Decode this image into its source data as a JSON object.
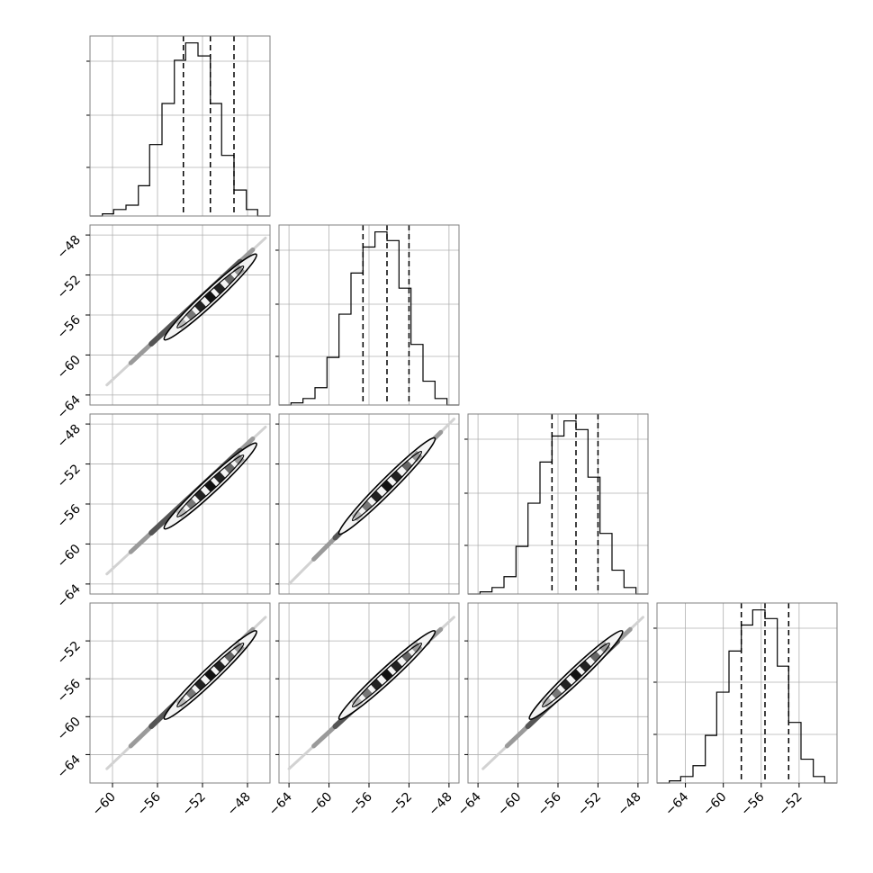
{
  "figure": {
    "background": "#ffffff",
    "grid_color": "#b0b0b0",
    "frame_color": "#808080",
    "line_color": "#000000"
  },
  "chart_data": {
    "type": "corner",
    "title": "",
    "parameters": 4,
    "grid": true,
    "parameter_ranges": [
      [
        -62,
        -46
      ],
      [
        -65,
        -47
      ],
      [
        -65,
        -47
      ],
      [
        -67,
        -48
      ]
    ],
    "x_tick_labels": [
      [
        "−60",
        "−56",
        "−52",
        "−48"
      ],
      [
        "−64",
        "−60",
        "−56",
        "−52",
        "−48"
      ],
      [
        "−64",
        "−60",
        "−56",
        "−52",
        "−48"
      ],
      [
        "−64",
        "−60",
        "−56",
        "−52"
      ]
    ],
    "x_tick_values": [
      [
        -60,
        -56,
        -52,
        -48
      ],
      [
        -64,
        -60,
        -56,
        -52,
        -48
      ],
      [
        -64,
        -60,
        -56,
        -52,
        -48
      ],
      [
        -64,
        -60,
        -56,
        -52
      ]
    ],
    "y_tick_labels": [
      [],
      [
        "−48",
        "−52",
        "−56",
        "−60",
        "−64"
      ],
      [
        "−48",
        "−52",
        "−56",
        "−60",
        "−64"
      ],
      [
        "−52",
        "−56",
        "−60",
        "−64"
      ]
    ],
    "y_tick_values": [
      [],
      [
        -48,
        -52,
        -56,
        -60,
        -64
      ],
      [
        -48,
        -52,
        -56,
        -60,
        -64
      ],
      [
        -52,
        -56,
        -60,
        -64
      ]
    ],
    "histograms": [
      {
        "param": 0,
        "bin_edges": [
          -62,
          -60.9,
          -59.9,
          -58.8,
          -57.7,
          -56.7,
          -55.6,
          -54.5,
          -53.5,
          -52.4,
          -51.3,
          -50.3,
          -49.2,
          -48.1,
          -47.1,
          -46
        ],
        "counts": [
          0,
          1,
          3,
          5,
          14,
          33,
          52,
          72,
          80,
          74,
          52,
          28,
          12,
          3,
          0
        ],
        "quantiles": [
          -53.7,
          -51.3,
          -49.2
        ]
      },
      {
        "param": 1,
        "bin_edges": [
          -65,
          -63.8,
          -62.6,
          -61.4,
          -60.2,
          -59,
          -57.8,
          -56.6,
          -55.4,
          -54.2,
          -53,
          -51.8,
          -50.6,
          -49.4,
          -48.2,
          -47
        ],
        "counts": [
          0,
          1,
          3,
          8,
          22,
          42,
          61,
          73,
          80,
          76,
          54,
          28,
          11,
          3,
          0
        ],
        "quantiles": [
          -56.6,
          -54.2,
          -52
        ]
      },
      {
        "param": 2,
        "bin_edges": [
          -65,
          -63.8,
          -62.6,
          -61.4,
          -60.2,
          -59,
          -57.8,
          -56.6,
          -55.4,
          -54.2,
          -53,
          -51.8,
          -50.6,
          -49.4,
          -48.2,
          -47
        ],
        "counts": [
          0,
          1,
          3,
          8,
          22,
          42,
          61,
          73,
          80,
          76,
          54,
          28,
          11,
          3,
          0
        ],
        "quantiles": [
          -56.6,
          -54.2,
          -52
        ]
      },
      {
        "param": 3,
        "bin_edges": [
          -67,
          -65.7,
          -64.5,
          -63.2,
          -61.9,
          -60.7,
          -59.4,
          -58.1,
          -56.9,
          -55.6,
          -54.3,
          -53.1,
          -51.8,
          -50.5,
          -49.3,
          -48
        ],
        "counts": [
          0,
          1,
          3,
          8,
          22,
          42,
          61,
          73,
          80,
          76,
          54,
          28,
          11,
          3,
          0
        ],
        "quantiles": [
          -58.1,
          -55.6,
          -53.1
        ]
      }
    ],
    "pair_panels": [
      {
        "row": 1,
        "col": 0,
        "center": [
          -51.3,
          -54.2
        ],
        "lower": [
          -60.5,
          -63
        ],
        "upper": [
          -46.4,
          -48.3
        ]
      },
      {
        "row": 2,
        "col": 0,
        "center": [
          -51.3,
          -54.2
        ],
        "lower": [
          -60.5,
          -63
        ],
        "upper": [
          -46.4,
          -48.3
        ]
      },
      {
        "row": 2,
        "col": 1,
        "center": [
          -54.2,
          -54.2
        ],
        "lower": [
          -64,
          -64
        ],
        "upper": [
          -47.5,
          -47.5
        ]
      },
      {
        "row": 3,
        "col": 0,
        "center": [
          -51.3,
          -55.6
        ],
        "lower": [
          -60.5,
          -65.5
        ],
        "upper": [
          -46.4,
          -49.5
        ]
      },
      {
        "row": 3,
        "col": 1,
        "center": [
          -54.2,
          -55.6
        ],
        "lower": [
          -64,
          -65.5
        ],
        "upper": [
          -47.5,
          -49.5
        ]
      },
      {
        "row": 3,
        "col": 2,
        "center": [
          -54.2,
          -55.6
        ],
        "lower": [
          -63.5,
          -65.5
        ],
        "upper": [
          -47.5,
          -49.5
        ]
      }
    ]
  }
}
